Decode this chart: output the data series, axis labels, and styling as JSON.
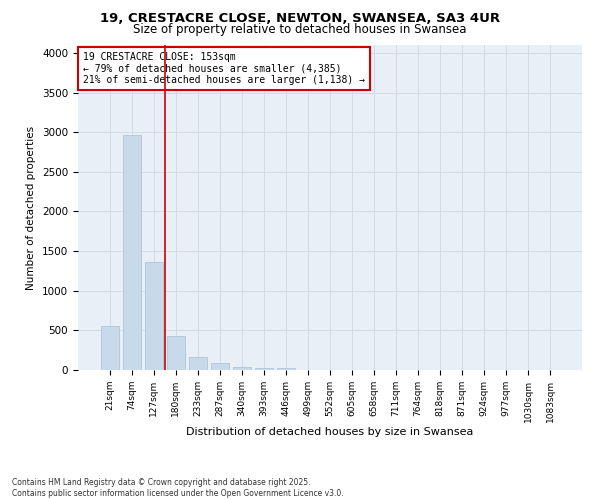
{
  "title_line1": "19, CRESTACRE CLOSE, NEWTON, SWANSEA, SA3 4UR",
  "title_line2": "Size of property relative to detached houses in Swansea",
  "xlabel": "Distribution of detached houses by size in Swansea",
  "ylabel": "Number of detached properties",
  "footnote_line1": "Contains HM Land Registry data © Crown copyright and database right 2025.",
  "footnote_line2": "Contains public sector information licensed under the Open Government Licence v3.0.",
  "annotation_title": "19 CRESTACRE CLOSE: 153sqm",
  "annotation_line1": "← 79% of detached houses are smaller (4,385)",
  "annotation_line2": "21% of semi-detached houses are larger (1,138) →",
  "bar_color": "#c8d9ea",
  "bar_edge_color": "#a8c0d6",
  "grid_color": "#d0dce8",
  "background_color": "#e8eff6",
  "vline_color": "#cc0000",
  "vline_position": 2.5,
  "categories": [
    "21sqm",
    "74sqm",
    "127sqm",
    "180sqm",
    "233sqm",
    "287sqm",
    "340sqm",
    "393sqm",
    "446sqm",
    "499sqm",
    "552sqm",
    "605sqm",
    "658sqm",
    "711sqm",
    "764sqm",
    "818sqm",
    "871sqm",
    "924sqm",
    "977sqm",
    "1030sqm",
    "1083sqm"
  ],
  "values": [
    560,
    2970,
    1360,
    430,
    170,
    90,
    40,
    30,
    20,
    0,
    0,
    0,
    0,
    0,
    0,
    0,
    0,
    0,
    0,
    0,
    0
  ],
  "ylim": [
    0,
    4100
  ],
  "yticks": [
    0,
    500,
    1000,
    1500,
    2000,
    2500,
    3000,
    3500,
    4000
  ]
}
